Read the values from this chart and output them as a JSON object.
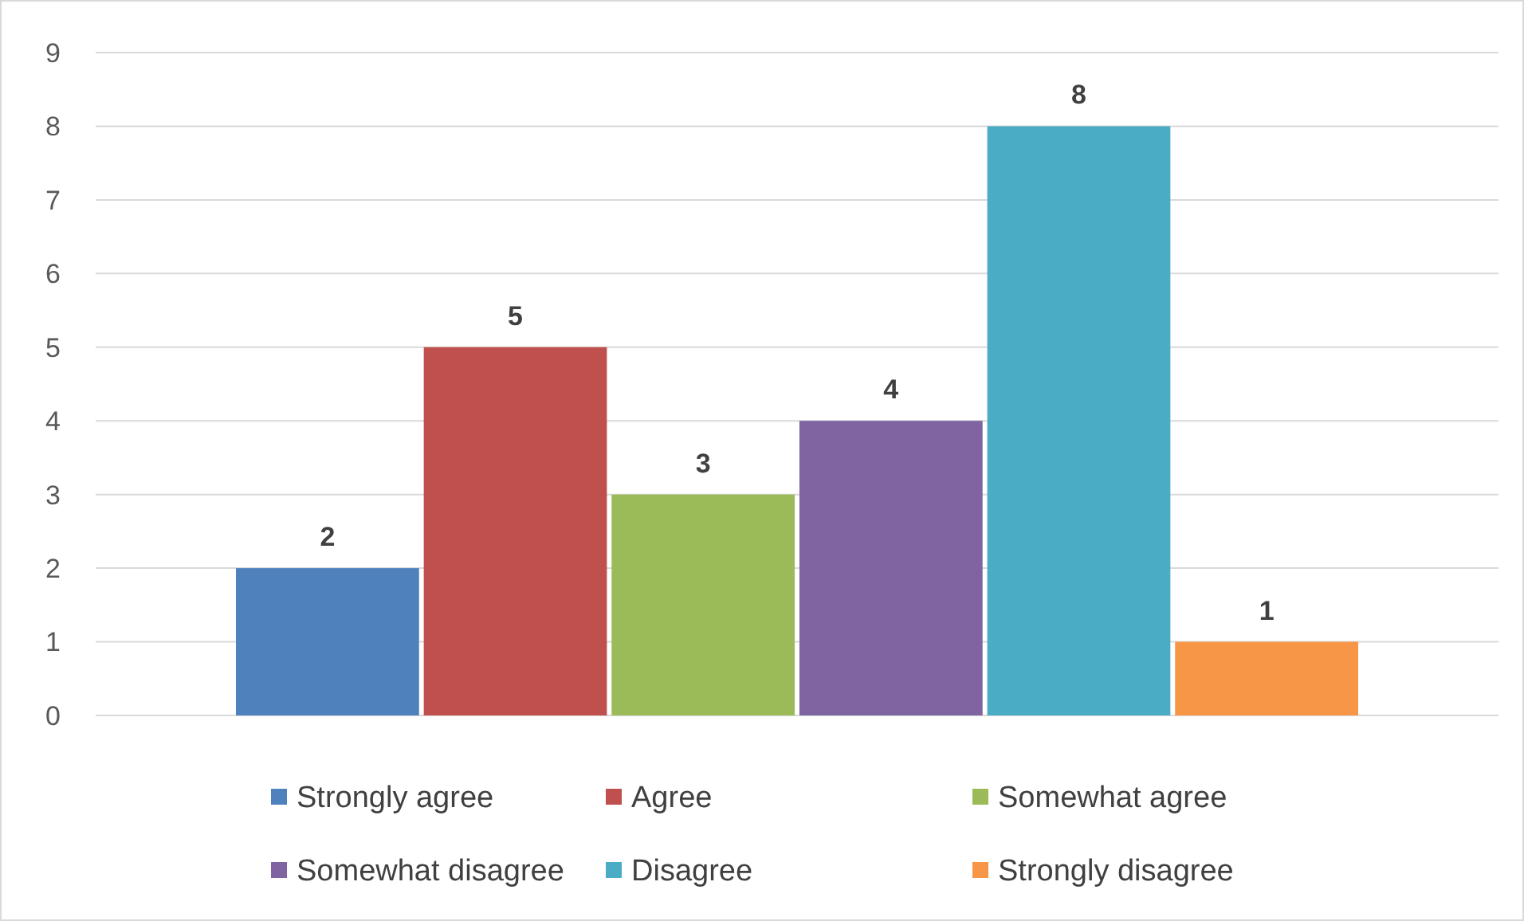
{
  "chart_data": {
    "type": "bar",
    "categories": [
      null
    ],
    "series": [
      {
        "name": "Strongly agree",
        "color": "#4f81bd",
        "values": [
          2
        ]
      },
      {
        "name": "Agree",
        "color": "#c0504d",
        "values": [
          5
        ]
      },
      {
        "name": "Somewhat agree",
        "color": "#9bbb59",
        "values": [
          3
        ]
      },
      {
        "name": "Somewhat disagree",
        "color": "#8064a2",
        "values": [
          4
        ]
      },
      {
        "name": "Disagree",
        "color": "#4bacc6",
        "values": [
          8
        ]
      },
      {
        "name": "Strongly disagree",
        "color": "#f79646",
        "values": [
          1
        ]
      }
    ],
    "ylim": [
      0,
      9
    ],
    "yticks": [
      0,
      1,
      2,
      3,
      4,
      5,
      6,
      7,
      8,
      9
    ],
    "grid": "y",
    "legend": "bottom",
    "data_labels": true
  }
}
